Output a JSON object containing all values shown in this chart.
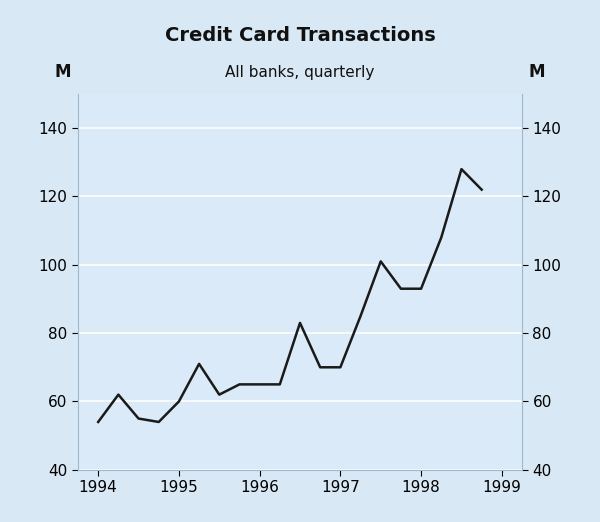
{
  "title": "Credit Card Transactions",
  "subtitle": "All banks, quarterly",
  "ylabel_left": "M",
  "ylabel_right": "M",
  "background_color": "#d8e8f4",
  "plot_bg_color": "#daeaf8",
  "line_color": "#1a1a1a",
  "line_width": 1.8,
  "xlim": [
    1993.75,
    1999.25
  ],
  "ylim": [
    40,
    150
  ],
  "yticks": [
    40,
    60,
    80,
    100,
    120,
    140
  ],
  "xticks": [
    1994,
    1995,
    1996,
    1997,
    1998,
    1999
  ],
  "x": [
    1994.0,
    1994.25,
    1994.5,
    1994.75,
    1995.0,
    1995.25,
    1995.5,
    1995.75,
    1996.0,
    1996.25,
    1996.5,
    1996.75,
    1997.0,
    1997.25,
    1997.5,
    1997.75,
    1998.0,
    1998.25,
    1998.5,
    1998.75
  ],
  "y": [
    54,
    62,
    55,
    54,
    60,
    71,
    62,
    65,
    65,
    65,
    83,
    70,
    70,
    85,
    101,
    93,
    93,
    108,
    128,
    122
  ],
  "title_fontsize": 14,
  "subtitle_fontsize": 11,
  "tick_fontsize": 11,
  "label_fontsize": 12,
  "grid_color": "#ffffff",
  "spine_color": "#a0b8cc"
}
